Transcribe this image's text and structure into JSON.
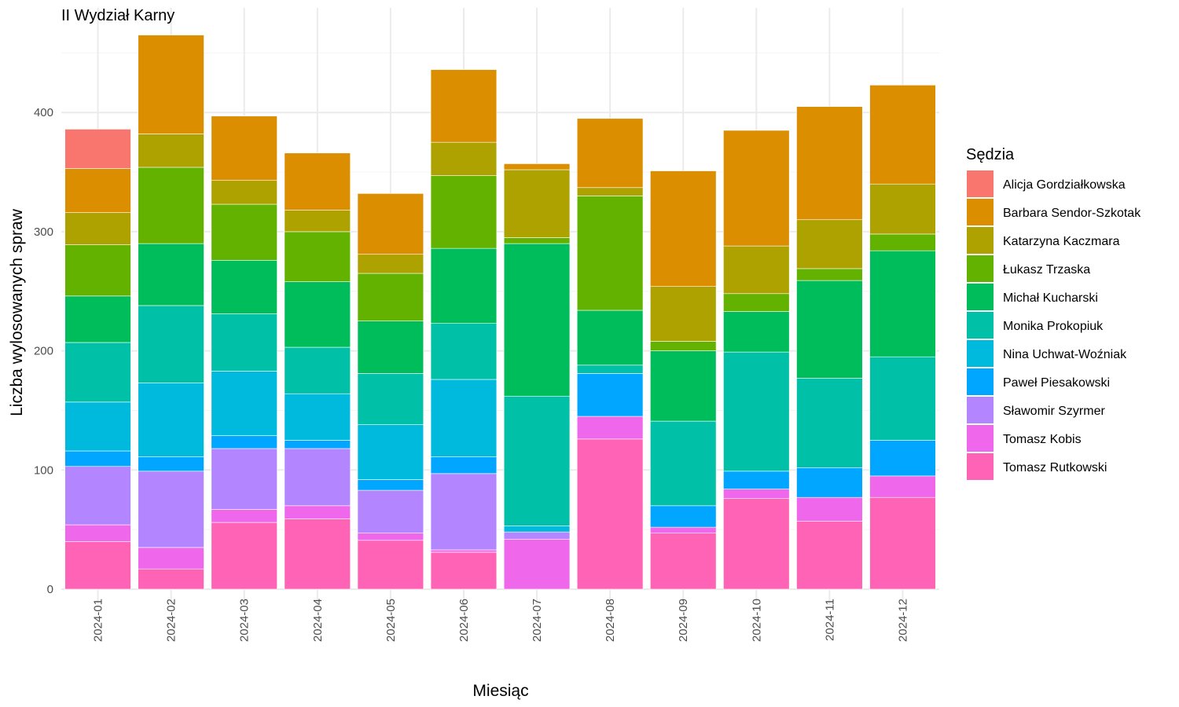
{
  "chart_data": {
    "type": "bar",
    "stacked": true,
    "title": "II Wydział Karny",
    "xlabel": "Miesiąc",
    "ylabel": "Liczba wylosowanych spraw",
    "ylim": [
      0,
      465
    ],
    "yticks": [
      0,
      100,
      200,
      300,
      400
    ],
    "grid": true,
    "legend": {
      "title": "Sędzia",
      "position": "right"
    },
    "categories": [
      "2024-01",
      "2024-02",
      "2024-03",
      "2024-04",
      "2024-05",
      "2024-06",
      "2024-07",
      "2024-08",
      "2024-09",
      "2024-10",
      "2024-11",
      "2024-12"
    ],
    "series": [
      {
        "name": "Alicja Gordziałkowska",
        "color": "#F8766D",
        "values": [
          33,
          0,
          0,
          0,
          0,
          0,
          0,
          0,
          0,
          0,
          0,
          0
        ]
      },
      {
        "name": "Barbara Sendor-Szkotak",
        "color": "#DB8E00",
        "values": [
          37,
          83,
          54,
          48,
          51,
          61,
          5,
          58,
          97,
          97,
          95,
          83
        ]
      },
      {
        "name": "Katarzyna Kaczmara",
        "color": "#AEA200",
        "values": [
          27,
          28,
          20,
          18,
          16,
          28,
          57,
          7,
          46,
          40,
          41,
          42
        ]
      },
      {
        "name": "Łukasz Trzaska",
        "color": "#64B200",
        "values": [
          43,
          64,
          47,
          42,
          40,
          61,
          5,
          96,
          8,
          15,
          10,
          14
        ]
      },
      {
        "name": "Michał Kucharski",
        "color": "#00BD5C",
        "values": [
          39,
          52,
          45,
          55,
          44,
          63,
          128,
          46,
          59,
          34,
          82,
          89
        ]
      },
      {
        "name": "Monika Prokopiuk",
        "color": "#00C1A7",
        "values": [
          50,
          65,
          48,
          39,
          43,
          47,
          109,
          7,
          71,
          100,
          75,
          70
        ]
      },
      {
        "name": "Nina Uchwat-Woźniak",
        "color": "#00BADE",
        "values": [
          41,
          62,
          54,
          39,
          46,
          65,
          5,
          0,
          0,
          0,
          0,
          0
        ]
      },
      {
        "name": "Paweł Piesakowski",
        "color": "#00A6FF",
        "values": [
          13,
          12,
          11,
          7,
          9,
          14,
          0,
          36,
          18,
          15,
          25,
          30
        ]
      },
      {
        "name": "Sławomir Szyrmer",
        "color": "#B385FF",
        "values": [
          49,
          64,
          51,
          48,
          36,
          64,
          6,
          0,
          0,
          0,
          0,
          0
        ]
      },
      {
        "name": "Tomasz Kobis",
        "color": "#EF67EB",
        "values": [
          14,
          18,
          11,
          11,
          6,
          2,
          42,
          19,
          5,
          8,
          20,
          18
        ]
      },
      {
        "name": "Tomasz Rutkowski",
        "color": "#FF63B6",
        "values": [
          40,
          17,
          56,
          59,
          41,
          31,
          0,
          126,
          47,
          76,
          57,
          77
        ]
      }
    ]
  }
}
